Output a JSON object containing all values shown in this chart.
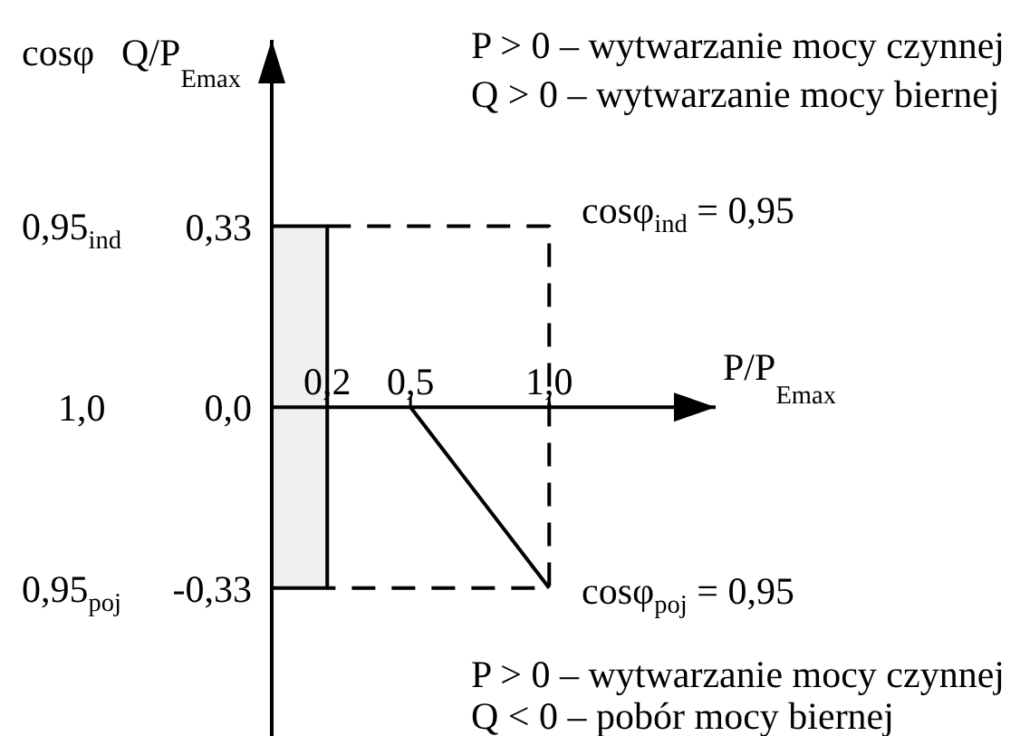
{
  "chart_data": {
    "type": "line",
    "xlabel": "P/P$_{Emax}$",
    "ylabel": "Q/P$_{Emax}$",
    "xlim": [
      0,
      1.6
    ],
    "xticks": [
      {
        "value": 0.2,
        "label": "0,2"
      },
      {
        "value": 0.5,
        "label": "0,5"
      },
      {
        "value": 1,
        "label": "1,0"
      }
    ],
    "ylim": [
      -0.6,
      0.67
    ],
    "yticks": [
      {
        "value": -0.33,
        "label": "-0,33"
      },
      {
        "value": 0,
        "label": "0,0"
      },
      {
        "value": 0.33,
        "label": "0,33"
      }
    ],
    "marker": "none",
    "series": [
      {
        "type": "area",
        "color": "#f0f0f0",
        "x": [
          0,
          0.2
        ],
        "values": [
          0.33,
          0.33
        ]
      },
      {
        "type": "area",
        "color": "#f0f0f0",
        "x": [
          0,
          0.2
        ],
        "values": [
          -0.33,
          -0.33
        ]
      },
      {
        "type": "line",
        "color": "#000000",
        "line_style": "solid",
        "x": [
          0,
          0.2,
          0.2,
          0
        ],
        "values": [
          0.33,
          0.33,
          -0.33,
          -0.33
        ]
      },
      {
        "type": "line",
        "color": "#000000",
        "line_style": "dashed",
        "x": [
          0.2,
          1,
          1,
          0.2
        ],
        "values": [
          0.33,
          0.33,
          -0.33,
          -0.33
        ]
      },
      {
        "type": "line",
        "color": "#000000",
        "line_style": "solid",
        "x": [
          0.5,
          1
        ],
        "values": [
          0,
          -0.33
        ]
      }
    ],
    "annotations": [
      "cosφ",
      "P > 0 – wytwarzanie mocy czynnej",
      "Q > 0 – wytwarzanie mocy biernej",
      "0,95$_{ind}$",
      "cosφ$_{ind}$ = 0,95",
      "1,0",
      "0,95$_{poj}$",
      "cosφ$_{poj}$ = 0,95",
      "P > 0 – wytwarzanie mocy czynnej",
      "Q < 0 – pobór mocy biernej"
    ]
  }
}
